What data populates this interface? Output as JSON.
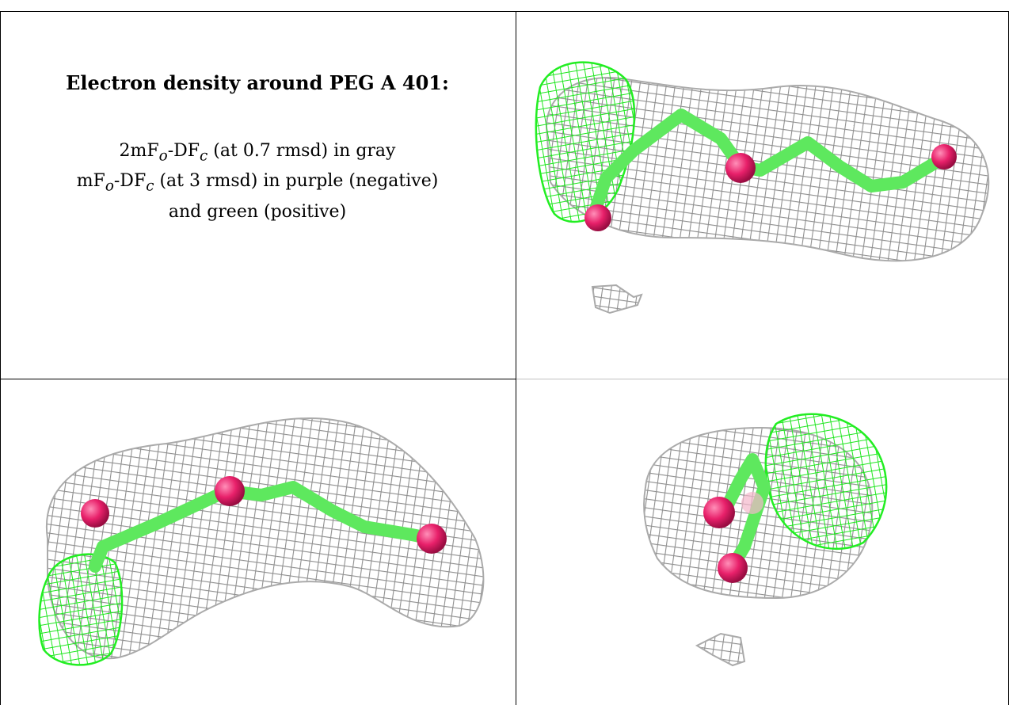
{
  "caption": {
    "title": "Electron density around PEG A 401:",
    "line1_prefix": "2mF",
    "line1_sub_o": "o",
    "line1_mid": "-DF",
    "line1_sub_c": "c",
    "line1_suffix": " (at 0.7 rmsd) in gray",
    "line2_prefix": "mF",
    "line2_sub_o": "o",
    "line2_mid": "-DF",
    "line2_sub_c": "c",
    "line2_suffix": " (at 3 rmsd) in purple (negative)",
    "line3": "and green (positive)"
  },
  "colors": {
    "density_2fofc": "#9a9a9a",
    "density_positive": "#22ee22",
    "oxygen_atom": "#e8206a",
    "carbon_bond": "#5ee85e",
    "border": "#000000"
  },
  "panels": [
    {
      "name": "view-1",
      "content": "PEG A 401 density mesh, side view"
    },
    {
      "name": "view-2",
      "content": "PEG A 401 density mesh, bottom view"
    },
    {
      "name": "view-3",
      "content": "PEG A 401 density mesh, end view"
    }
  ]
}
